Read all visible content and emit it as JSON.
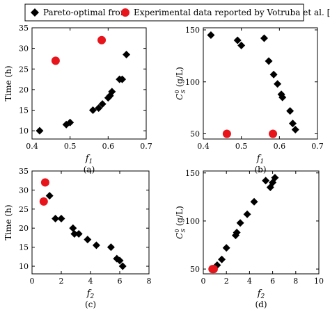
{
  "legend": {
    "pareto_label": "Pareto-optimal front",
    "experimental_label": "Experimental data reported by Votruba et al. [2]",
    "pareto_color": "#000000",
    "experimental_color": "#e8141c"
  },
  "chart_data": [
    {
      "panel": "(a)",
      "type": "scatter",
      "xlabel": "f1",
      "ylabel": "Time (h)",
      "xlim": [
        0.4,
        0.7
      ],
      "ylim": [
        8,
        35
      ],
      "xticks": [
        "0.4",
        "0.5",
        "0.6",
        "0.7"
      ],
      "yticks": [
        "10",
        "15",
        "20",
        "25",
        "30",
        "35"
      ],
      "series": [
        {
          "name": "Pareto-optimal front",
          "marker": "diamond",
          "x": [
            0.42,
            0.49,
            0.5,
            0.56,
            0.575,
            0.585,
            0.6,
            0.605,
            0.61,
            0.63,
            0.637,
            0.648
          ],
          "y": [
            10,
            11.5,
            12,
            15,
            15.5,
            16.5,
            18,
            18.5,
            19.5,
            22.5,
            22.5,
            28.5
          ]
        },
        {
          "name": "Experimental data reported by Votruba et al. [2]",
          "marker": "circle",
          "x": [
            0.462,
            0.583
          ],
          "y": [
            27,
            32
          ]
        }
      ]
    },
    {
      "panel": "(b)",
      "type": "scatter",
      "xlabel": "f1",
      "ylabel": "C_S^0 (g/L)",
      "xlim": [
        0.4,
        0.7
      ],
      "ylim": [
        45,
        152
      ],
      "xticks": [
        "0.4",
        "0.5",
        "0.6",
        "0.7"
      ],
      "yticks": [
        "50",
        "100",
        "150"
      ],
      "series": [
        {
          "name": "Pareto-optimal front",
          "marker": "diamond",
          "x": [
            0.42,
            0.49,
            0.5,
            0.56,
            0.572,
            0.585,
            0.595,
            0.605,
            0.608,
            0.628,
            0.635,
            0.642
          ],
          "y": [
            145,
            140,
            135,
            142,
            120,
            107,
            98,
            88,
            85,
            72,
            60,
            54
          ]
        },
        {
          "name": "Experimental data reported by Votruba et al. [2]",
          "marker": "circle",
          "x": [
            0.462,
            0.583
          ],
          "y": [
            50,
            50
          ]
        }
      ]
    },
    {
      "panel": "(c)",
      "type": "scatter",
      "xlabel": "f2",
      "ylabel": "Time (h)",
      "xlim": [
        0,
        8
      ],
      "ylim": [
        8,
        35
      ],
      "xticks": [
        "0",
        "2",
        "4",
        "6",
        "8"
      ],
      "yticks": [
        "10",
        "15",
        "20",
        "25",
        "30",
        "35"
      ],
      "series": [
        {
          "name": "Pareto-optimal front",
          "marker": "diamond",
          "x": [
            1.2,
            1.6,
            2.0,
            2.8,
            2.9,
            3.2,
            3.8,
            4.4,
            5.4,
            5.8,
            6.0,
            6.2
          ],
          "y": [
            28.5,
            22.5,
            22.5,
            20,
            18.5,
            18.5,
            17,
            15.5,
            15,
            12,
            11.5,
            10
          ]
        },
        {
          "name": "Experimental data reported by Votruba et al. [2]",
          "marker": "circle",
          "x": [
            0.9,
            0.8
          ],
          "y": [
            32,
            27
          ]
        }
      ]
    },
    {
      "panel": "(d)",
      "type": "scatter",
      "xlabel": "f2",
      "ylabel": "C_S^0 (g/L)",
      "xlim": [
        0,
        10
      ],
      "ylim": [
        45,
        152
      ],
      "xticks": [
        "0",
        "2",
        "4",
        "6",
        "8",
        "10"
      ],
      "yticks": [
        "50",
        "100",
        "150"
      ],
      "series": [
        {
          "name": "Pareto-optimal front",
          "marker": "diamond",
          "x": [
            1.2,
            1.6,
            2.0,
            2.8,
            2.9,
            3.2,
            3.8,
            4.4,
            5.4,
            5.8,
            6.0,
            6.2
          ],
          "y": [
            54,
            60,
            72,
            85,
            88,
            98,
            107,
            120,
            142,
            135,
            140,
            145
          ]
        },
        {
          "name": "Experimental data reported by Votruba et al. [2]",
          "marker": "circle",
          "x": [
            0.8,
            0.9
          ],
          "y": [
            50,
            50
          ]
        }
      ]
    }
  ]
}
